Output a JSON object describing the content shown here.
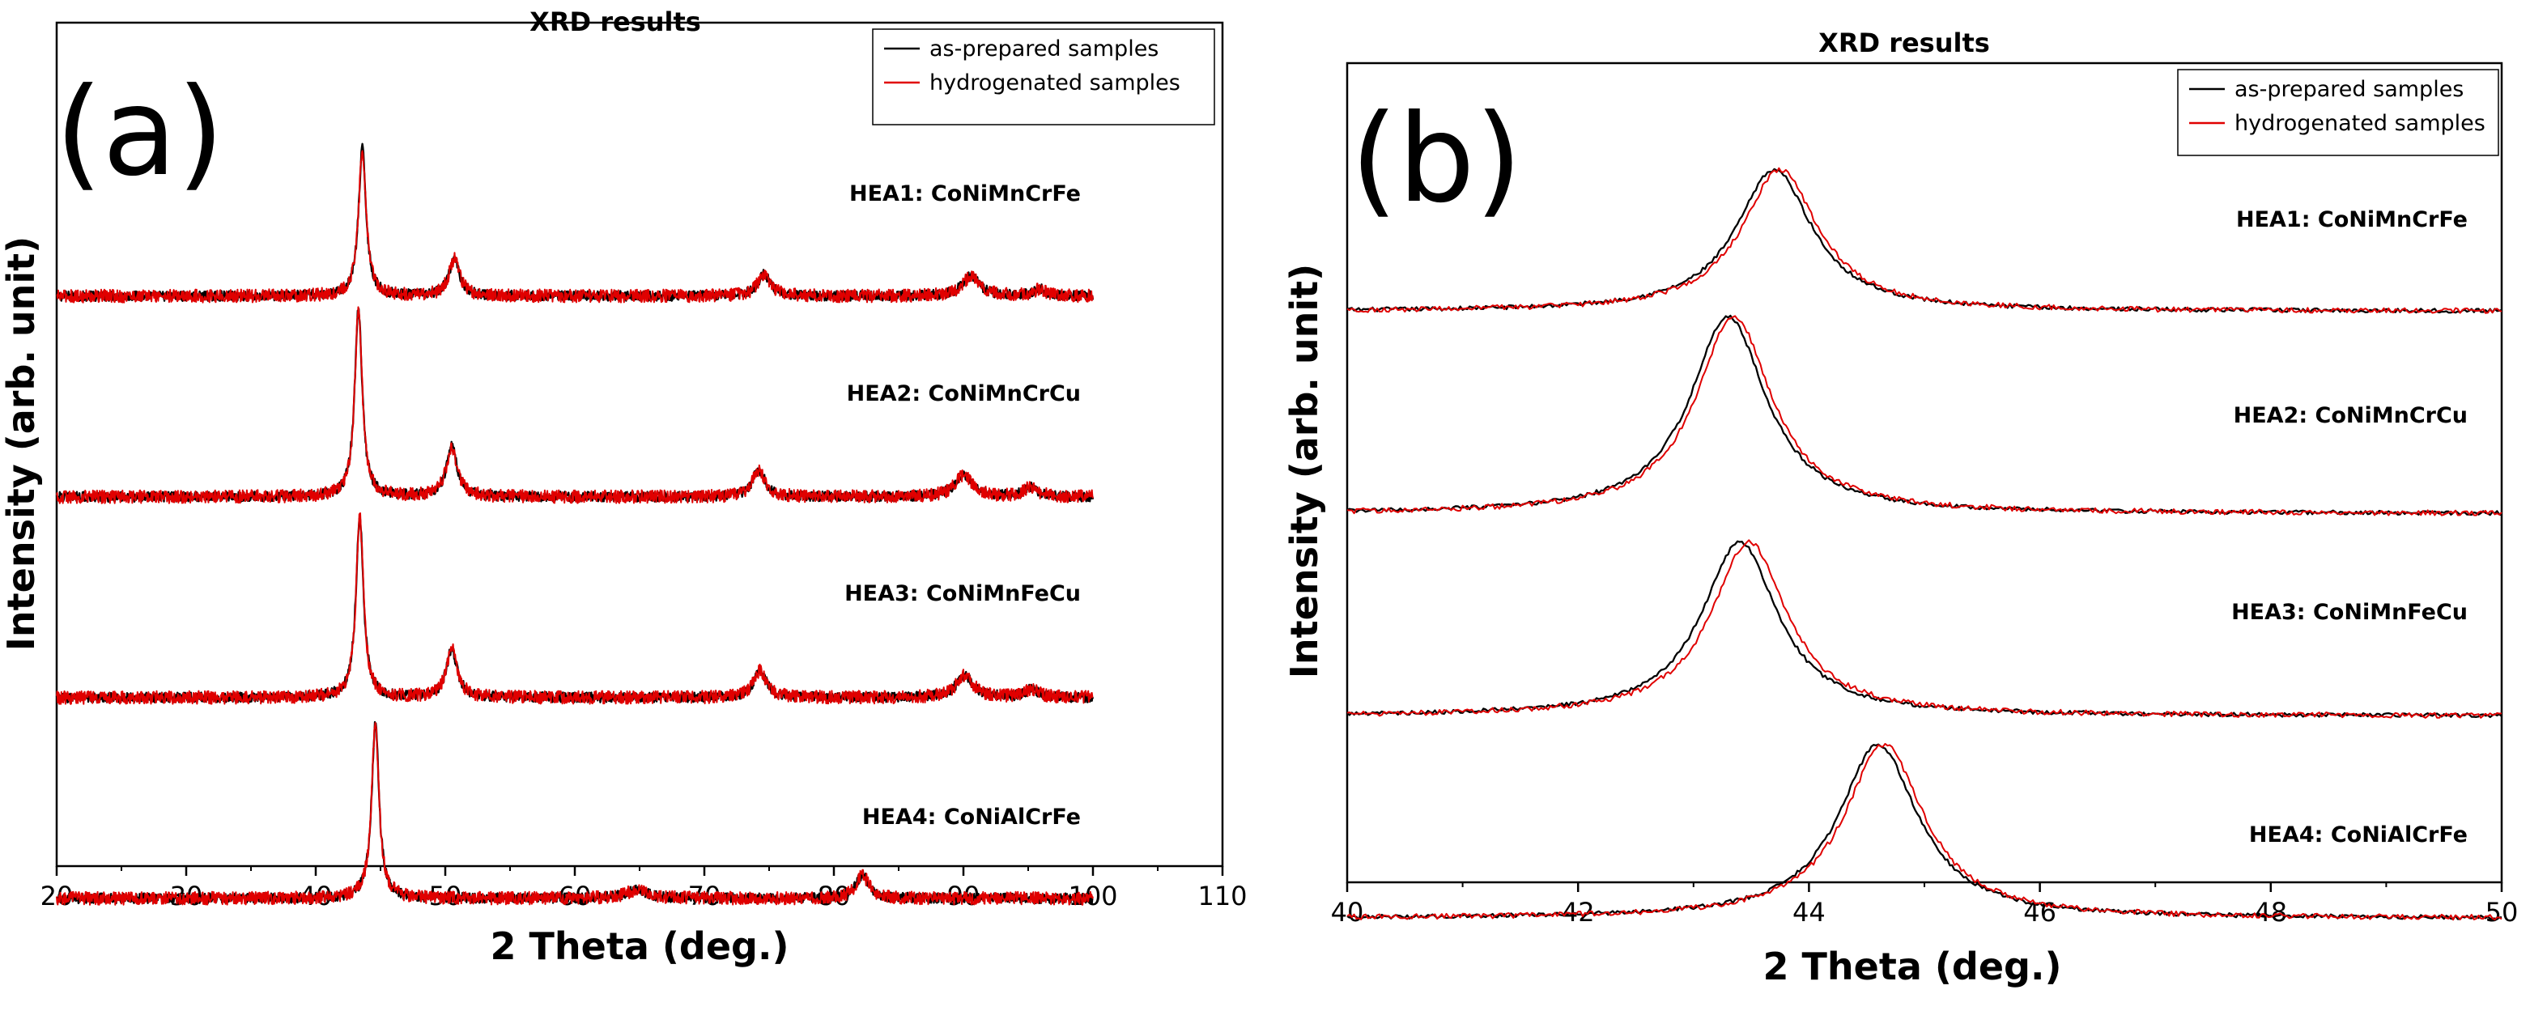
{
  "chart_data": [
    {
      "type": "line",
      "panel_label": "(a)",
      "title": "XRD results",
      "xlabel": "2 Theta (deg.)",
      "ylabel": "Intensity (arb. unit)",
      "xlim": [
        20,
        110
      ],
      "x_ticks": [
        20,
        30,
        40,
        50,
        60,
        70,
        80,
        90,
        100,
        110
      ],
      "y_ticks_shown": false,
      "data_x_range": [
        20,
        100
      ],
      "legend": {
        "position": "top-right",
        "entries": [
          {
            "label": "as-prepared samples",
            "color": "#000000"
          },
          {
            "label": "hydrogenated samples",
            "color": "#e00000"
          }
        ]
      },
      "series": [
        {
          "name": "HEA1: CoNiMnCrFe",
          "offset": 3,
          "baseline": 0.02,
          "noise": 0.03,
          "peaks": [
            {
              "x": 43.6,
              "h": 0.88,
              "w": 0.35
            },
            {
              "x": 50.7,
              "h": 0.22,
              "w": 0.5
            },
            {
              "x": 74.6,
              "h": 0.13,
              "w": 0.6
            },
            {
              "x": 90.6,
              "h": 0.12,
              "w": 0.8
            },
            {
              "x": 95.9,
              "h": 0.04,
              "w": 0.6
            }
          ]
        },
        {
          "name": "HEA2: CoNiMnCrCu",
          "offset": 2,
          "baseline": 0.02,
          "noise": 0.03,
          "peaks": [
            {
              "x": 43.3,
              "h": 1.12,
              "w": 0.35
            },
            {
              "x": 50.5,
              "h": 0.3,
              "w": 0.5
            },
            {
              "x": 74.2,
              "h": 0.16,
              "w": 0.6
            },
            {
              "x": 90.0,
              "h": 0.13,
              "w": 0.8
            },
            {
              "x": 95.2,
              "h": 0.06,
              "w": 0.6
            }
          ]
        },
        {
          "name": "HEA3: CoNiMnFeCu",
          "offset": 1,
          "baseline": 0.02,
          "noise": 0.03,
          "peaks": [
            {
              "x": 43.4,
              "h": 1.08,
              "w": 0.35
            },
            {
              "x": 50.5,
              "h": 0.29,
              "w": 0.5
            },
            {
              "x": 74.3,
              "h": 0.16,
              "w": 0.6
            },
            {
              "x": 90.1,
              "h": 0.13,
              "w": 0.8
            },
            {
              "x": 95.3,
              "h": 0.05,
              "w": 0.6
            }
          ]
        },
        {
          "name": "HEA4: CoNiAlCrFe",
          "offset": 0,
          "baseline": 0.02,
          "noise": 0.03,
          "peaks": [
            {
              "x": 44.6,
              "h": 1.04,
              "w": 0.35
            },
            {
              "x": 64.8,
              "h": 0.05,
              "w": 1.0
            },
            {
              "x": 82.2,
              "h": 0.14,
              "w": 0.6
            }
          ]
        }
      ]
    },
    {
      "type": "line",
      "panel_label": "(b)",
      "title": "XRD results",
      "xlabel": "2 Theta (deg.)",
      "ylabel": "Intensity (arb. unit)",
      "xlim": [
        40,
        50
      ],
      "x_ticks": [
        40,
        42,
        44,
        46,
        48,
        50
      ],
      "y_ticks_shown": false,
      "data_x_range": [
        40,
        50
      ],
      "legend": {
        "position": "top-right",
        "entries": [
          {
            "label": "as-prepared samples",
            "color": "#000000"
          },
          {
            "label": "hydrogenated samples",
            "color": "#e00000"
          }
        ]
      },
      "series": [
        {
          "name": "HEA1: CoNiMnCrFe",
          "offset": 3,
          "baseline": 0.05,
          "noise": 0.012,
          "peaks": [
            {
              "x": 43.7,
              "h": 0.84,
              "w": 0.4
            }
          ],
          "hydrogenated_shift": 0.05
        },
        {
          "name": "HEA2: CoNiMnCrCu",
          "offset": 2,
          "baseline": 0.05,
          "noise": 0.012,
          "peaks": [
            {
              "x": 43.3,
              "h": 1.17,
              "w": 0.4
            }
          ],
          "hydrogenated_shift": 0.05
        },
        {
          "name": "HEA3: CoNiMnFeCu",
          "offset": 1,
          "baseline": 0.05,
          "noise": 0.012,
          "peaks": [
            {
              "x": 43.4,
              "h": 1.03,
              "w": 0.4
            }
          ],
          "hydrogenated_shift": 0.08
        },
        {
          "name": "HEA4: CoNiAlCrFe",
          "offset": 0,
          "baseline": 0.05,
          "noise": 0.012,
          "peaks": [
            {
              "x": 44.6,
              "h": 1.03,
              "w": 0.42
            }
          ],
          "hydrogenated_shift": 0.05
        }
      ]
    }
  ]
}
